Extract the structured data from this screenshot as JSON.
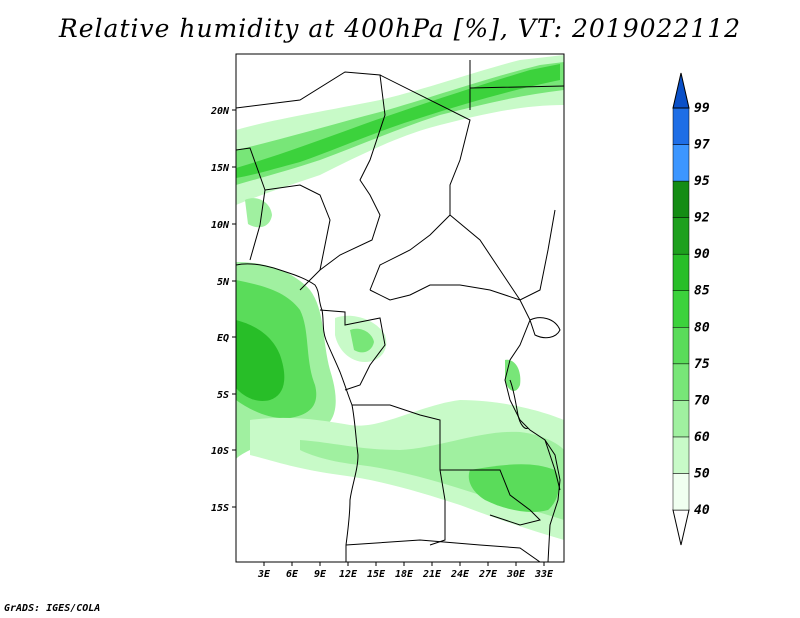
{
  "title": "Relative humidity at 400hPa [%], VT: 2019022112",
  "credit": "GrADS: IGES/COLA",
  "map": {
    "lat_labels": [
      "20N",
      "15N",
      "10N",
      "5N",
      "EQ",
      "5S",
      "10S",
      "15S"
    ],
    "lon_labels": [
      "3E",
      "6E",
      "9E",
      "12E",
      "15E",
      "18E",
      "21E",
      "24E",
      "27E",
      "30E",
      "33E"
    ]
  },
  "colorbar": {
    "levels": [
      "40",
      "50",
      "60",
      "70",
      "75",
      "80",
      "85",
      "90",
      "92",
      "95",
      "97",
      "99"
    ],
    "colors": [
      "#f0fff0",
      "#c8fac8",
      "#a0f0a0",
      "#78e678",
      "#5adc5a",
      "#3cd23c",
      "#28be28",
      "#1ea01e",
      "#148c14",
      "#3c96ff",
      "#1e6ee6",
      "#0a50c8"
    ]
  },
  "colors": {
    "land_border": "#000000",
    "frame": "#000000"
  }
}
